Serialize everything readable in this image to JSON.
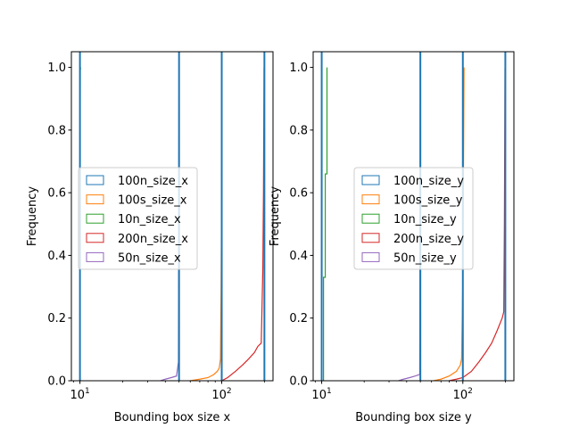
{
  "chart_data": [
    {
      "type": "histogram-cumulative-step",
      "xlabel": "Bounding box size x",
      "ylabel": "Frequency",
      "xscale": "log",
      "xlim": [
        8.7,
        230
      ],
      "ylim": [
        0,
        1.05
      ],
      "xticks": [
        {
          "value": 10,
          "label": "10",
          "exp": "1"
        },
        {
          "value": 100,
          "label": "10",
          "exp": "2"
        }
      ],
      "yticks": [
        "0.0",
        "0.2",
        "0.4",
        "0.6",
        "0.8",
        "1.0"
      ],
      "vlines": [
        10,
        50,
        100,
        200
      ],
      "legend": {
        "placement": "center-left"
      },
      "series": [
        {
          "name": "100n_size_x",
          "color": "#1f77b4",
          "points": [
            [
              10,
              0
            ],
            [
              10,
              1
            ],
            [
              50,
              1
            ],
            [
              50,
              0
            ],
            [
              50,
              1
            ],
            [
              100,
              1
            ],
            [
              100,
              0
            ],
            [
              100,
              1
            ],
            [
              200,
              1
            ],
            [
              200,
              0
            ],
            [
              200,
              1
            ]
          ]
        },
        {
          "name": "100s_size_x",
          "color": "#ff7f0e",
          "points": [
            [
              60,
              0
            ],
            [
              70,
              0.005
            ],
            [
              80,
              0.01
            ],
            [
              88,
              0.02
            ],
            [
              93,
              0.03
            ],
            [
              96,
              0.04
            ],
            [
              98,
              0.07
            ],
            [
              99,
              0.29
            ],
            [
              100,
              0.71
            ],
            [
              100.5,
              1.0
            ]
          ]
        },
        {
          "name": "10n_size_x",
          "color": "#2ca02c",
          "points": [
            [
              10,
              0
            ],
            [
              10,
              0.35
            ],
            [
              10.05,
              0.99
            ],
            [
              10.1,
              1.0
            ]
          ]
        },
        {
          "name": "200n_size_x",
          "color": "#d62728",
          "points": [
            [
              100,
              0
            ],
            [
              110,
              0.01
            ],
            [
              125,
              0.03
            ],
            [
              140,
              0.05
            ],
            [
              155,
              0.07
            ],
            [
              170,
              0.09
            ],
            [
              180,
              0.11
            ],
            [
              190,
              0.12
            ],
            [
              195,
              0.36
            ],
            [
              197,
              0.6
            ],
            [
              199,
              1.0
            ]
          ]
        },
        {
          "name": "50n_size_x",
          "color": "#9467bd",
          "points": [
            [
              37,
              0
            ],
            [
              40,
              0.005
            ],
            [
              44,
              0.01
            ],
            [
              48,
              0.015
            ],
            [
              49.5,
              0.06
            ],
            [
              50,
              1.0
            ]
          ]
        }
      ]
    },
    {
      "type": "histogram-cumulative-step",
      "xlabel": "Bounding box size y",
      "ylabel": "Frequency",
      "xscale": "log",
      "xlim": [
        8.7,
        230
      ],
      "ylim": [
        0,
        1.05
      ],
      "xticks": [
        {
          "value": 10,
          "label": "10",
          "exp": "1"
        },
        {
          "value": 100,
          "label": "10",
          "exp": "2"
        }
      ],
      "yticks": [
        "0.0",
        "0.2",
        "0.4",
        "0.6",
        "0.8",
        "1.0"
      ],
      "vlines": [
        10,
        50,
        100,
        200
      ],
      "legend": {
        "placement": "center"
      },
      "series": [
        {
          "name": "100n_size_y",
          "color": "#1f77b4",
          "points": [
            [
              10,
              0
            ],
            [
              10,
              1
            ],
            [
              50,
              1
            ],
            [
              50,
              0
            ],
            [
              50,
              1
            ],
            [
              100,
              1
            ],
            [
              100,
              0
            ],
            [
              100,
              1
            ],
            [
              200,
              1
            ],
            [
              200,
              0
            ],
            [
              200,
              1
            ]
          ]
        },
        {
          "name": "100s_size_y",
          "color": "#ff7f0e",
          "points": [
            [
              62,
              0
            ],
            [
              70,
              0.005
            ],
            [
              80,
              0.015
            ],
            [
              90,
              0.03
            ],
            [
              96,
              0.05
            ],
            [
              98,
              0.07
            ],
            [
              100,
              0.33
            ],
            [
              101,
              0.66
            ],
            [
              102,
              1.0
            ]
          ]
        },
        {
          "name": "10n_size_y",
          "color": "#2ca02c",
          "points": [
            [
              10.3,
              0
            ],
            [
              10.3,
              0.33
            ],
            [
              10.6,
              0.33
            ],
            [
              10.6,
              0.66
            ],
            [
              10.9,
              0.66
            ],
            [
              10.9,
              1.0
            ]
          ]
        },
        {
          "name": "200n_size_y",
          "color": "#d62728",
          "points": [
            [
              80,
              0
            ],
            [
              90,
              0.005
            ],
            [
              100,
              0.01
            ],
            [
              115,
              0.03
            ],
            [
              130,
              0.06
            ],
            [
              145,
              0.09
            ],
            [
              160,
              0.12
            ],
            [
              175,
              0.16
            ],
            [
              190,
              0.2
            ],
            [
              195,
              0.22
            ],
            [
              197,
              0.5
            ],
            [
              199,
              1.0
            ]
          ]
        },
        {
          "name": "50n_size_y",
          "color": "#9467bd",
          "points": [
            [
              35,
              0
            ],
            [
              38,
              0.005
            ],
            [
              42,
              0.01
            ],
            [
              46,
              0.015
            ],
            [
              49.5,
              0.02
            ],
            [
              50,
              1.0
            ]
          ]
        }
      ]
    }
  ]
}
